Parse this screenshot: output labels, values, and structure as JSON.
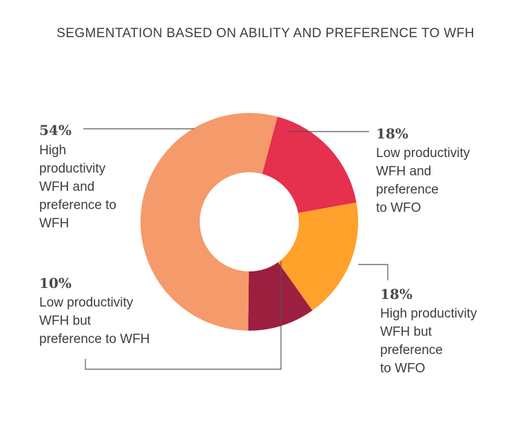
{
  "title": "SEGMENTATION BASED ON ABILITY AND PREFERENCE TO WFH",
  "chart_data": {
    "type": "pie",
    "donut": true,
    "slices": [
      {
        "value": 18,
        "pct_label": "18%",
        "label_lines": [
          "Low productivity",
          "WFH and",
          "preference",
          "to WFO"
        ],
        "color": "#E5304E"
      },
      {
        "value": 18,
        "pct_label": "18%",
        "label_lines": [
          "High productivity",
          "WFH but",
          "preference",
          "to WFO"
        ],
        "color": "#FFA12B"
      },
      {
        "value": 10,
        "pct_label": "10%",
        "label_lines": [
          "Low productivity",
          "WFH but",
          "preference to WFH"
        ],
        "color": "#9C1F40"
      },
      {
        "value": 54,
        "pct_label": "54%",
        "label_lines": [
          "High",
          "productivity",
          "WFH and",
          "preference to",
          "WFH"
        ],
        "color": "#F59A6A"
      }
    ]
  }
}
